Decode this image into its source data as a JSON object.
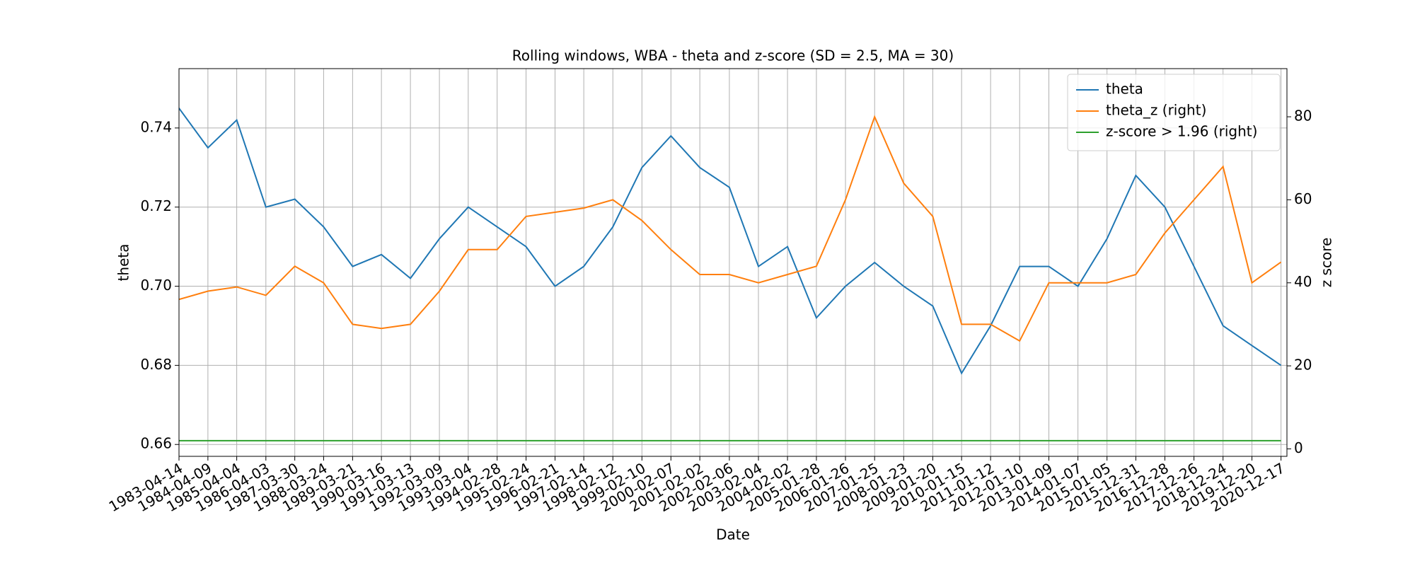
{
  "chart_data": {
    "type": "line",
    "title": "Rolling windows, WBA - theta and z-score (SD = 2.5, MA = 30)",
    "x_label": "Date",
    "y_label": "theta",
    "y2_label": "z score",
    "x": [
      "1983-04-14",
      "1984-04-09",
      "1985-04-04",
      "1986-04-03",
      "1987-03-30",
      "1988-03-24",
      "1989-03-21",
      "1990-03-16",
      "1991-03-13",
      "1992-03-09",
      "1993-03-04",
      "1994-02-28",
      "1995-02-24",
      "1996-02-21",
      "1997-02-14",
      "1998-02-12",
      "1999-02-10",
      "2000-02-07",
      "2001-02-02",
      "2002-02-06",
      "2003-02-04",
      "2004-02-02",
      "2005-01-28",
      "2006-01-26",
      "2007-01-25",
      "2008-01-23",
      "2009-01-20",
      "2010-01-15",
      "2011-01-12",
      "2012-01-10",
      "2013-01-09",
      "2014-01-07",
      "2015-01-05",
      "2015-12-31",
      "2016-12-28",
      "2017-12-26",
      "2018-12-24",
      "2019-12-20",
      "2020-12-17"
    ],
    "series": [
      {
        "name": "theta",
        "color": "#1f77b4",
        "values": [
          0.745,
          0.735,
          0.742,
          0.72,
          0.722,
          0.715,
          0.705,
          0.708,
          0.702,
          0.712,
          0.72,
          0.715,
          0.71,
          0.7,
          0.705,
          0.715,
          0.73,
          0.738,
          0.73,
          0.725,
          0.705,
          0.71,
          0.692,
          0.7,
          0.706,
          0.7,
          0.695,
          0.678,
          0.69,
          0.705,
          0.705,
          0.7,
          0.712,
          0.728,
          0.72,
          0.705,
          0.69,
          0.685,
          0.68
        ]
      },
      {
        "name": "theta_z (right)",
        "color": "#ff7f0e",
        "axis": "y2",
        "values": [
          36,
          38,
          39,
          37,
          44,
          40,
          30,
          29,
          30,
          38,
          48,
          48,
          56,
          57,
          58,
          60,
          55,
          48,
          42,
          42,
          40,
          42,
          44,
          60,
          80,
          64,
          56,
          30,
          30,
          26,
          40,
          40,
          40,
          42,
          52,
          60,
          68,
          40,
          45
        ]
      },
      {
        "name": "z-score > 1.96 (right)",
        "color": "#2ca02c",
        "axis": "y2",
        "values": [
          1.96,
          1.96,
          1.96,
          1.96,
          1.96,
          1.96,
          1.96,
          1.96,
          1.96,
          1.96,
          1.96,
          1.96,
          1.96,
          1.96,
          1.96,
          1.96,
          1.96,
          1.96,
          1.96,
          1.96,
          1.96,
          1.96,
          1.96,
          1.96,
          1.96,
          1.96,
          1.96,
          1.96,
          1.96,
          1.96,
          1.96,
          1.96,
          1.96,
          1.96,
          1.96,
          1.96,
          1.96,
          1.96,
          1.96
        ]
      }
    ],
    "xlim": [
      "1983-04-14",
      "2021-03-01"
    ],
    "xticks": [
      "1983-04-14",
      "1984-04-09",
      "1985-04-04",
      "1986-04-03",
      "1987-03-30",
      "1988-03-24",
      "1989-03-21",
      "1990-03-16",
      "1991-03-13",
      "1992-03-09",
      "1993-03-04",
      "1994-02-28",
      "1995-02-24",
      "1996-02-21",
      "1997-02-14",
      "1998-02-12",
      "1999-02-10",
      "2000-02-07",
      "2001-02-02",
      "2002-02-06",
      "2003-02-04",
      "2004-02-02",
      "2005-01-28",
      "2006-01-26",
      "2007-01-25",
      "2008-01-23",
      "2009-01-20",
      "2010-01-15",
      "2011-01-12",
      "2012-01-10",
      "2013-01-09",
      "2014-01-07",
      "2015-01-05",
      "2015-12-31",
      "2016-12-28",
      "2017-12-26",
      "2018-12-24",
      "2019-12-20",
      "2020-12-17"
    ],
    "ylim": [
      0.657,
      0.755
    ],
    "yticks": [
      0.66,
      0.68,
      {
        "value": 0.7,
        "label": "0.70"
      },
      0.72,
      0.74
    ],
    "y2lim": [
      -1.8,
      91.6
    ],
    "y2ticks": [
      0,
      20,
      40,
      60,
      80
    ],
    "grid": true,
    "legend": "upper right"
  }
}
